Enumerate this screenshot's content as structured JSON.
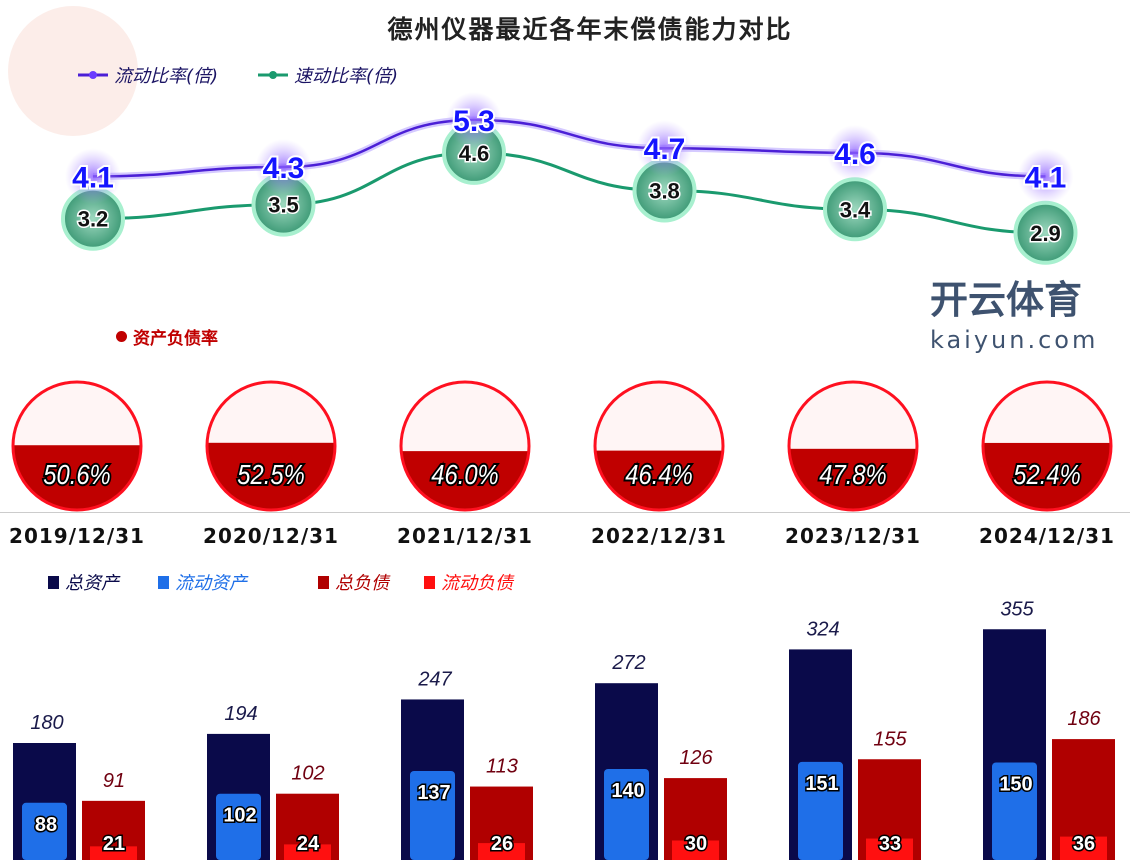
{
  "chart_data": [
    {
      "type": "line",
      "title": "德州仪器最近各年末偿债能力对比",
      "categories": [
        "2019/12/31",
        "2020/12/31",
        "2021/12/31",
        "2022/12/31",
        "2023/12/31",
        "2024/12/31"
      ],
      "series": [
        {
          "name": "流动比率(倍)",
          "values": [
            4.1,
            4.3,
            5.3,
            4.7,
            4.6,
            4.1
          ],
          "color": "#4b1fd6"
        },
        {
          "name": "速动比率(倍)",
          "values": [
            3.2,
            3.5,
            4.6,
            3.8,
            3.4,
            2.9
          ],
          "color": "#1a9a6e"
        }
      ]
    },
    {
      "type": "gauge",
      "legend": "资产负债率",
      "categories": [
        "2019/12/31",
        "2020/12/31",
        "2021/12/31",
        "2022/12/31",
        "2023/12/31",
        "2024/12/31"
      ],
      "values": [
        50.6,
        52.5,
        46.0,
        46.4,
        47.8,
        52.4
      ],
      "labels": [
        "50.6%",
        "52.5%",
        "46.0%",
        "46.4%",
        "47.8%",
        "52.4%"
      ],
      "color": "#c00000"
    },
    {
      "type": "bar",
      "categories": [
        "2019/12/31",
        "2020/12/31",
        "2021/12/31",
        "2022/12/31",
        "2023/12/31",
        "2024/12/31"
      ],
      "series": [
        {
          "name": "总资产",
          "values": [
            180,
            194,
            247,
            272,
            324,
            355
          ],
          "color": "#0a0a4a"
        },
        {
          "name": "流动资产",
          "values": [
            88,
            102,
            137,
            140,
            151,
            150
          ],
          "color": "#1f6fe8"
        },
        {
          "name": "总负债",
          "values": [
            91,
            102,
            113,
            126,
            155,
            186
          ],
          "color": "#b00000"
        },
        {
          "name": "流动负债",
          "values": [
            21,
            24,
            26,
            30,
            33,
            36
          ],
          "color": "#ff1010"
        }
      ]
    }
  ],
  "watermark": {
    "text": "开云体育",
    "url_text": "kaiyun.com"
  }
}
